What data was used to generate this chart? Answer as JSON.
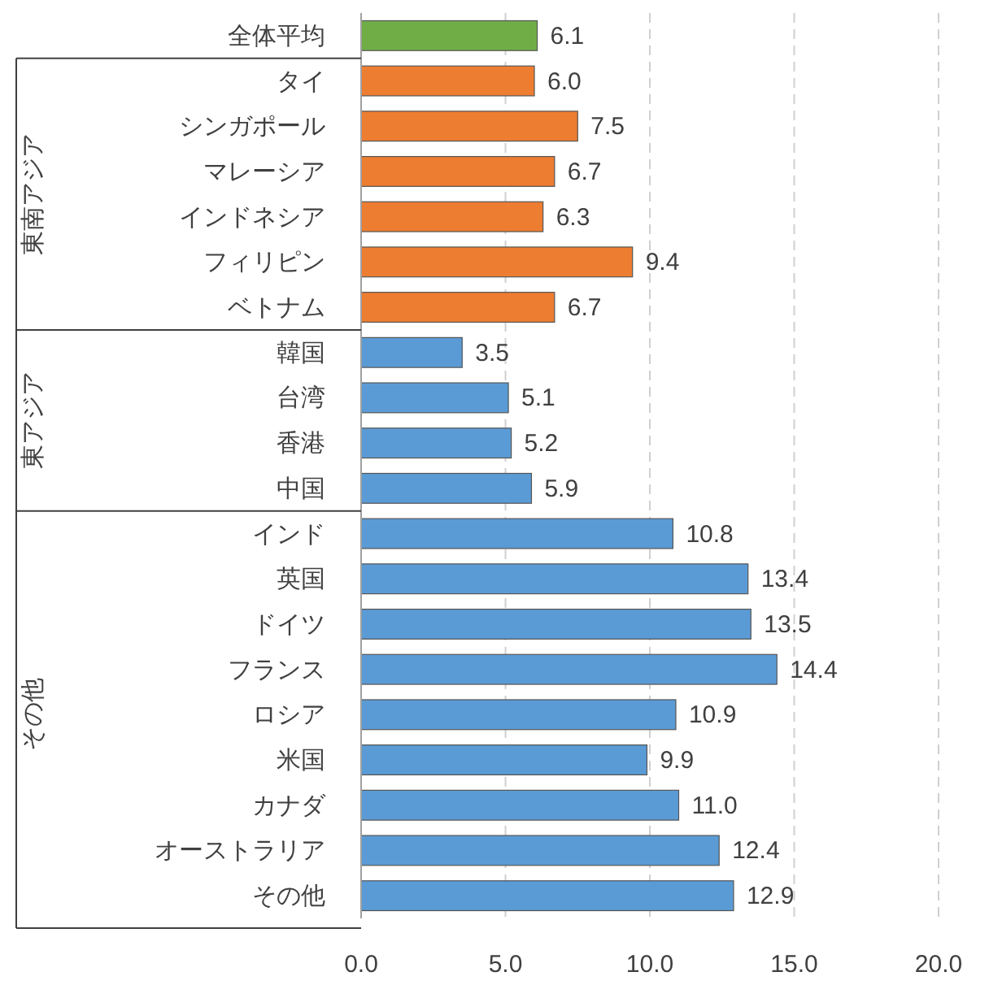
{
  "chart_data": {
    "type": "bar",
    "orientation": "horizontal",
    "categories": [
      "全体平均",
      "タイ",
      "シンガポール",
      "マレーシア",
      "インドネシア",
      "フィリピン",
      "ベトナム",
      "韓国",
      "台湾",
      "香港",
      "中国",
      "インド",
      "英国",
      "ドイツ",
      "フランス",
      "ロシア",
      "米国",
      "カナダ",
      "オーストラリア",
      "その他"
    ],
    "values": [
      6.1,
      6.0,
      7.5,
      6.7,
      6.3,
      9.4,
      6.7,
      3.5,
      5.1,
      5.2,
      5.9,
      10.8,
      13.4,
      13.5,
      14.4,
      10.9,
      9.9,
      11.0,
      12.4,
      12.9
    ],
    "value_labels": [
      "6.1",
      "6.0",
      "7.5",
      "6.7",
      "6.3",
      "9.4",
      "6.7",
      "3.5",
      "5.1",
      "5.2",
      "5.9",
      "10.8",
      "13.4",
      "13.5",
      "14.4",
      "10.9",
      "9.9",
      "11.0",
      "12.4",
      "12.9"
    ],
    "colors": [
      "#70ad47",
      "#ed7d31",
      "#ed7d31",
      "#ed7d31",
      "#ed7d31",
      "#ed7d31",
      "#ed7d31",
      "#5b9bd5",
      "#5b9bd5",
      "#5b9bd5",
      "#5b9bd5",
      "#5b9bd5",
      "#5b9bd5",
      "#5b9bd5",
      "#5b9bd5",
      "#5b9bd5",
      "#5b9bd5",
      "#5b9bd5",
      "#5b9bd5",
      "#5b9bd5"
    ],
    "xlim": [
      0,
      20
    ],
    "xticks": [
      {
        "value": 0,
        "label": "0.0"
      },
      {
        "value": 5,
        "label": "5.0"
      },
      {
        "value": 10,
        "label": "10.0"
      },
      {
        "value": 15,
        "label": "15.0"
      },
      {
        "value": 20,
        "label": "20.0"
      }
    ],
    "grid": "x",
    "annotations": [
      "東南アジア",
      "東アジア",
      "その他"
    ]
  }
}
